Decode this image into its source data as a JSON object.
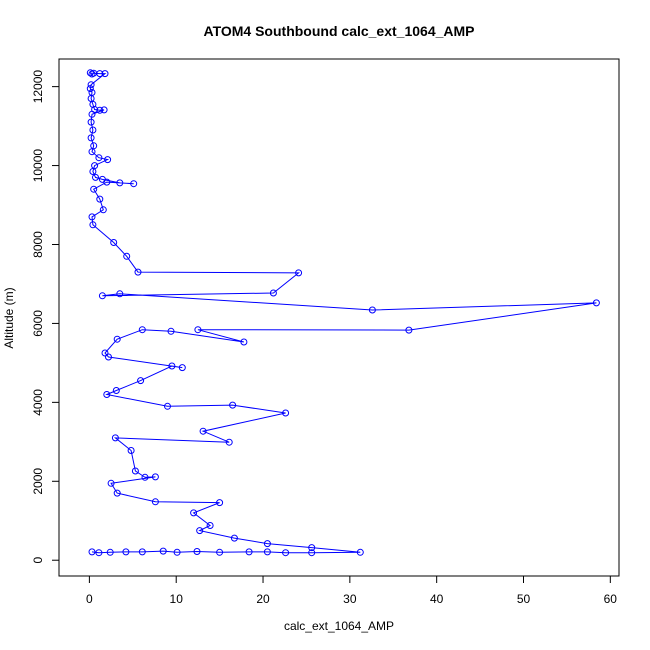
{
  "chart_data": {
    "type": "line",
    "title": "ATOM4 Southbound calc_ext_1064_AMP",
    "xlabel": "calc_ext_1064_AMP",
    "ylabel": "Altitude (m)",
    "xlim": [
      -3.5,
      61
    ],
    "ylim": [
      -400,
      12700
    ],
    "xticks": [
      0,
      10,
      20,
      30,
      40,
      50,
      60
    ],
    "yticks": [
      0,
      2000,
      4000,
      6000,
      8000,
      10000,
      12000
    ],
    "grid": false,
    "legend": "none",
    "marker": "open-circle",
    "color": "#0000ff",
    "series": [
      {
        "values": [
          [
            0.1,
            12350
          ],
          [
            0.3,
            12320
          ],
          [
            0.5,
            12340
          ],
          [
            1.2,
            12330
          ],
          [
            1.8,
            12330
          ],
          [
            0.2,
            12050
          ],
          [
            0.1,
            11950
          ],
          [
            0.3,
            11850
          ],
          [
            0.2,
            11700
          ],
          [
            0.4,
            11550
          ],
          [
            0.6,
            11420
          ],
          [
            1.2,
            11400
          ],
          [
            1.7,
            11410
          ],
          [
            0.3,
            11300
          ],
          [
            0.2,
            11100
          ],
          [
            0.4,
            10900
          ],
          [
            0.2,
            10700
          ],
          [
            0.5,
            10500
          ],
          [
            0.3,
            10350
          ],
          [
            1.1,
            10200
          ],
          [
            2.1,
            10150
          ],
          [
            0.6,
            10000
          ],
          [
            0.4,
            9850
          ],
          [
            0.7,
            9700
          ],
          [
            1.5,
            9650
          ],
          [
            3.5,
            9560
          ],
          [
            5.1,
            9540
          ],
          [
            2.0,
            9580
          ],
          [
            0.5,
            9400
          ],
          [
            1.2,
            9150
          ],
          [
            1.6,
            8880
          ],
          [
            0.3,
            8700
          ],
          [
            0.4,
            8500
          ],
          [
            2.8,
            8050
          ],
          [
            4.3,
            7700
          ],
          [
            5.6,
            7300
          ],
          [
            24.1,
            7280
          ],
          [
            21.2,
            6770
          ],
          [
            1.5,
            6700
          ],
          [
            3.5,
            6750
          ],
          [
            32.6,
            6340
          ],
          [
            58.4,
            6520
          ],
          [
            36.8,
            5830
          ],
          [
            12.5,
            5840
          ],
          [
            17.8,
            5530
          ],
          [
            9.4,
            5800
          ],
          [
            6.1,
            5840
          ],
          [
            3.2,
            5600
          ],
          [
            1.8,
            5250
          ],
          [
            2.2,
            5150
          ],
          [
            10.7,
            4880
          ],
          [
            9.5,
            4920
          ],
          [
            5.9,
            4550
          ],
          [
            3.1,
            4300
          ],
          [
            2.0,
            4200
          ],
          [
            9.0,
            3900
          ],
          [
            16.5,
            3930
          ],
          [
            22.6,
            3730
          ],
          [
            13.1,
            3270
          ],
          [
            16.1,
            2990
          ],
          [
            3.0,
            3100
          ],
          [
            4.8,
            2780
          ],
          [
            5.3,
            2260
          ],
          [
            6.4,
            2100
          ],
          [
            7.6,
            2110
          ],
          [
            2.5,
            1950
          ],
          [
            3.2,
            1700
          ],
          [
            7.6,
            1480
          ],
          [
            15.0,
            1460
          ],
          [
            12.0,
            1200
          ],
          [
            13.9,
            880
          ],
          [
            12.7,
            750
          ],
          [
            16.7,
            560
          ],
          [
            20.5,
            420
          ],
          [
            25.6,
            320
          ],
          [
            31.2,
            200
          ],
          [
            25.6,
            190
          ],
          [
            22.6,
            190
          ],
          [
            20.5,
            210
          ],
          [
            18.4,
            210
          ],
          [
            15.0,
            200
          ],
          [
            12.4,
            220
          ],
          [
            10.1,
            200
          ],
          [
            8.5,
            230
          ],
          [
            6.1,
            210
          ],
          [
            4.2,
            210
          ],
          [
            2.4,
            200
          ],
          [
            1.1,
            190
          ],
          [
            0.3,
            210
          ]
        ]
      }
    ]
  }
}
